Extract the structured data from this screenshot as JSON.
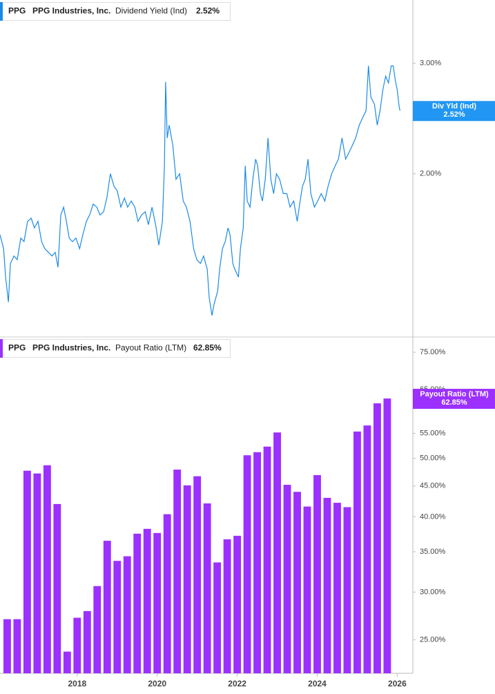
{
  "chart_data": [
    {
      "type": "line",
      "ticker": "PPG",
      "company": "PPG Industries, Inc.",
      "log_scale": true,
      "tag_label": "Div Yld (Ind)",
      "current": {
        "value": 2.52,
        "label": "2.52%"
      },
      "xlim": [
        2016.07,
        2026.39
      ],
      "ylim": [
        1.1,
        3.78
      ],
      "yticks": [
        {
          "value": 2,
          "label": "2.00%"
        },
        {
          "value": 3,
          "label": "3.00%"
        }
      ],
      "x": [
        2016.07,
        2016.16,
        2016.21,
        2016.28,
        2016.33,
        2016.42,
        2016.5,
        2016.59,
        2016.67,
        2016.76,
        2016.85,
        2016.93,
        2017.02,
        2017.11,
        2017.19,
        2017.28,
        2017.37,
        2017.45,
        2017.52,
        2017.59,
        2017.66,
        2017.73,
        2017.8,
        2017.88,
        2017.97,
        2018.06,
        2018.14,
        2018.23,
        2018.31,
        2018.4,
        2018.49,
        2018.57,
        2018.66,
        2018.74,
        2018.83,
        2018.92,
        2019.0,
        2019.09,
        2019.18,
        2019.26,
        2019.35,
        2019.44,
        2019.52,
        2019.61,
        2019.7,
        2019.78,
        2019.87,
        2019.96,
        2020.04,
        2020.13,
        2020.18,
        2020.21,
        2020.25,
        2020.3,
        2020.39,
        2020.47,
        2020.56,
        2020.65,
        2020.73,
        2020.82,
        2020.91,
        2020.99,
        2021.08,
        2021.16,
        2021.25,
        2021.3,
        2021.37,
        2021.42,
        2021.51,
        2021.56,
        2021.63,
        2021.7,
        2021.77,
        2021.82,
        2021.89,
        2021.94,
        2022.03,
        2022.08,
        2022.15,
        2022.2,
        2022.25,
        2022.32,
        2022.39,
        2022.46,
        2022.51,
        2022.58,
        2022.63,
        2022.7,
        2022.77,
        2022.84,
        2022.91,
        2022.98,
        2023.06,
        2023.15,
        2023.24,
        2023.32,
        2023.41,
        2023.5,
        2023.55,
        2023.63,
        2023.7,
        2023.77,
        2023.84,
        2023.93,
        2024.01,
        2024.1,
        2024.19,
        2024.27,
        2024.36,
        2024.45,
        2024.53,
        2024.62,
        2024.71,
        2024.79,
        2024.88,
        2024.96,
        2025.05,
        2025.14,
        2025.22,
        2025.28,
        2025.34,
        2025.43,
        2025.5,
        2025.57,
        2025.64,
        2025.71,
        2025.78,
        2025.85,
        2025.9,
        2025.95,
        2026.0,
        2026.05,
        2026.07
      ],
      "series": [
        {
          "name": "Dividend Yield (Ind)",
          "color": "#1a8ae6",
          "values": [
            1.6,
            1.52,
            1.37,
            1.25,
            1.44,
            1.48,
            1.46,
            1.58,
            1.56,
            1.68,
            1.7,
            1.64,
            1.68,
            1.56,
            1.52,
            1.5,
            1.48,
            1.5,
            1.42,
            1.72,
            1.77,
            1.68,
            1.58,
            1.56,
            1.58,
            1.52,
            1.6,
            1.68,
            1.72,
            1.79,
            1.77,
            1.72,
            1.74,
            1.83,
            2.0,
            1.91,
            1.88,
            1.77,
            1.83,
            1.77,
            1.81,
            1.77,
            1.68,
            1.72,
            1.74,
            1.66,
            1.77,
            1.66,
            1.54,
            1.68,
            2.06,
            2.8,
            2.28,
            2.39,
            2.22,
            1.96,
            2.0,
            1.81,
            1.77,
            1.68,
            1.52,
            1.46,
            1.44,
            1.48,
            1.41,
            1.27,
            1.19,
            1.24,
            1.3,
            1.41,
            1.52,
            1.56,
            1.64,
            1.6,
            1.44,
            1.41,
            1.37,
            1.52,
            1.64,
            2.06,
            1.81,
            1.77,
            1.96,
            2.11,
            2.06,
            1.86,
            1.81,
            1.96,
            2.28,
            1.96,
            1.86,
            2.0,
            1.96,
            1.86,
            1.86,
            1.77,
            1.81,
            1.68,
            1.77,
            1.91,
            1.96,
            2.11,
            1.86,
            1.77,
            1.81,
            1.86,
            1.81,
            1.91,
            2.0,
            2.06,
            2.11,
            2.28,
            2.11,
            2.16,
            2.22,
            2.28,
            2.39,
            2.46,
            2.52,
            2.97,
            2.65,
            2.58,
            2.39,
            2.52,
            2.72,
            2.86,
            2.79,
            2.97,
            2.97,
            2.82,
            2.72,
            2.55,
            2.52
          ]
        }
      ]
    },
    {
      "type": "bar",
      "ticker": "PPG",
      "company": "PPG Industries, Inc.",
      "log_scale": true,
      "tag_label": "Payout Ratio (LTM)",
      "current": {
        "value": 62.85,
        "label": "62.85%"
      },
      "xlim": [
        2016.07,
        2026.39
      ],
      "ylim": [
        22,
        79.5
      ],
      "xticks": [
        2018,
        2020,
        2022,
        2024,
        2026
      ],
      "yticks": [
        {
          "value": 25,
          "label": "25.00%"
        },
        {
          "value": 30,
          "label": "30.00%"
        },
        {
          "value": 35,
          "label": "35.00%"
        },
        {
          "value": 40,
          "label": "40.00%"
        },
        {
          "value": 45,
          "label": "45.00%"
        },
        {
          "value": 50,
          "label": "50.00%"
        },
        {
          "value": 55,
          "label": "55.00%"
        },
        {
          "value": 65,
          "label": "65.00%"
        },
        {
          "value": 75,
          "label": "75.00%"
        }
      ],
      "x": [
        2016.25,
        2016.5,
        2016.75,
        2017.0,
        2017.25,
        2017.5,
        2017.75,
        2018.0,
        2018.25,
        2018.5,
        2018.75,
        2019.0,
        2019.25,
        2019.5,
        2019.75,
        2020.0,
        2020.25,
        2020.5,
        2020.75,
        2021.0,
        2021.25,
        2021.5,
        2021.75,
        2022.0,
        2022.25,
        2022.5,
        2022.75,
        2023.0,
        2023.25,
        2023.5,
        2023.75,
        2024.0,
        2024.25,
        2024.5,
        2024.75,
        2025.0,
        2025.25,
        2025.5,
        2025.75
      ],
      "series": [
        {
          "name": "Payout Ratio (LTM)",
          "color": "#9b30ff",
          "values": [
            27.05,
            27.05,
            47.7,
            47.2,
            48.7,
            42.0,
            23.9,
            27.2,
            27.9,
            30.7,
            36.5,
            33.8,
            34.4,
            37.5,
            38.2,
            37.6,
            40.4,
            47.9,
            45.1,
            46.7,
            42.1,
            33.6,
            36.7,
            37.2,
            50.6,
            51.2,
            52.3,
            55.2,
            45.2,
            44.0,
            41.6,
            46.9,
            43.0,
            42.2,
            41.5,
            55.4,
            56.7,
            61.7,
            62.85
          ]
        }
      ]
    }
  ]
}
